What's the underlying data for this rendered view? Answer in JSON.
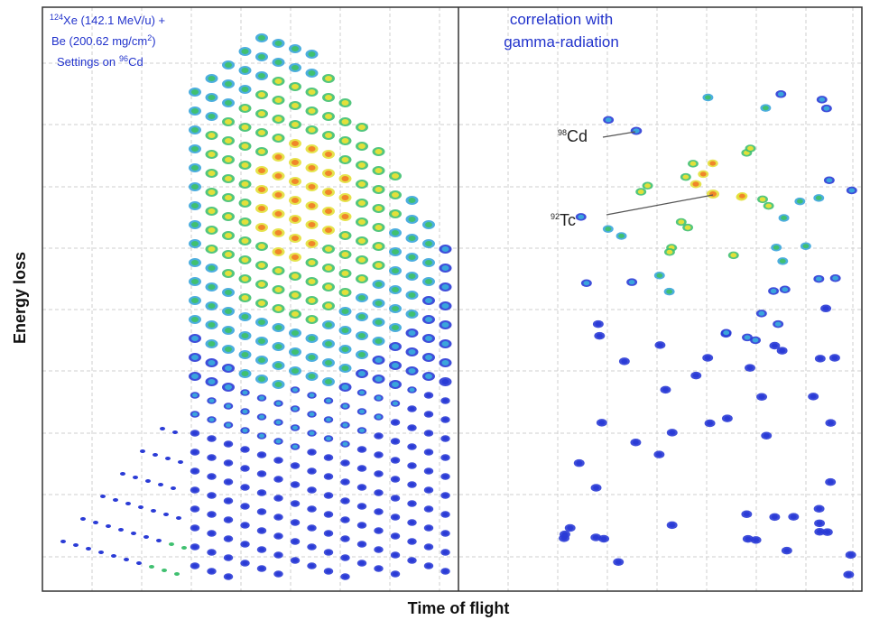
{
  "annotations": {
    "reaction": [
      [
        "124",
        "Xe (142.1 MeV/u) +"
      ],
      [
        "Be (200.62 mg/cm",
        "2",
        ")"
      ],
      [
        "Settings on",
        "96",
        "Cd"
      ]
    ],
    "correlation": [
      "correlation with",
      "gamma-radiation"
    ],
    "isotopes": [
      [
        "98",
        "Cd"
      ],
      [
        "92",
        "Tc"
      ]
    ]
  },
  "axes": {
    "y_label": "Energy loss",
    "x_label": "Time of flight"
  }
}
